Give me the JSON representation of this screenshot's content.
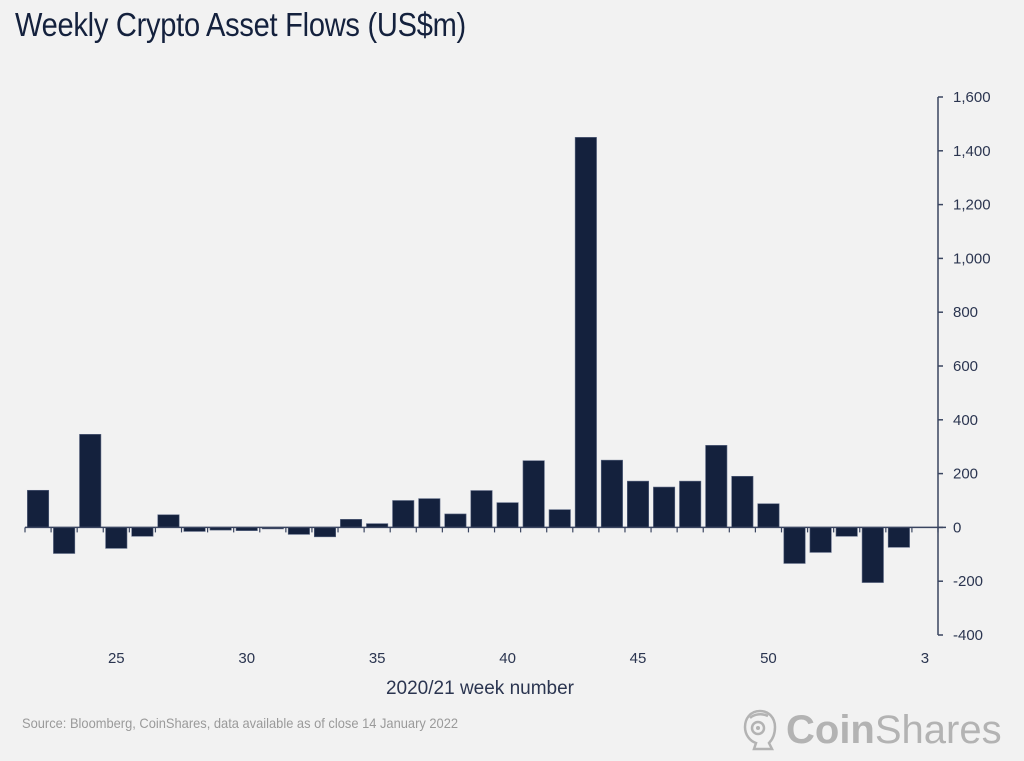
{
  "chart_data": {
    "type": "bar",
    "title": "Weekly Crypto Asset Flows (US$m)",
    "xlabel": "2020/21 week number",
    "ylabel": "",
    "ylim": [
      -400,
      1600
    ],
    "yticks": [
      1600,
      1400,
      1200,
      1000,
      800,
      600,
      400,
      200,
      0,
      -200,
      -400
    ],
    "ytick_labels": [
      "1,600",
      "1,400",
      "1,200",
      "1,000",
      "800",
      "600",
      "400",
      "200",
      "0",
      "-200",
      "-400"
    ],
    "y_axis_position": "right",
    "grid": false,
    "xtick_labels": [
      {
        "category": "25",
        "label": "25"
      },
      {
        "category": "30",
        "label": "30"
      },
      {
        "category": "35",
        "label": "35"
      },
      {
        "category": "40",
        "label": "40"
      },
      {
        "category": "45",
        "label": "45"
      },
      {
        "category": "50",
        "label": "50"
      },
      {
        "category": "3",
        "label": "3"
      }
    ],
    "categories": [
      "22",
      "23",
      "24",
      "25",
      "26",
      "27",
      "28",
      "29",
      "30",
      "31",
      "32",
      "33",
      "34",
      "35",
      "36",
      "37",
      "38",
      "39",
      "40",
      "41",
      "42",
      "43",
      "44",
      "45",
      "46",
      "47",
      "48",
      "49",
      "50",
      "51",
      "52",
      "53",
      "1",
      "2",
      "3"
    ],
    "values": [
      138,
      -97,
      346,
      -78,
      -33,
      47,
      -15,
      -10,
      -12,
      -5,
      -26,
      -35,
      30,
      14,
      100,
      107,
      50,
      137,
      92,
      248,
      66,
      1450,
      250,
      172,
      150,
      172,
      305,
      190,
      88,
      -134,
      -93,
      -33,
      -205,
      -74,
      0
    ],
    "colors": {
      "bar": "#14213d",
      "axis": "#3a4560"
    }
  },
  "footer": {
    "source": "Source: Bloomberg, CoinShares, data available as of close 14 January 2022",
    "logo_bold": "Coin",
    "logo_light": "Shares"
  }
}
